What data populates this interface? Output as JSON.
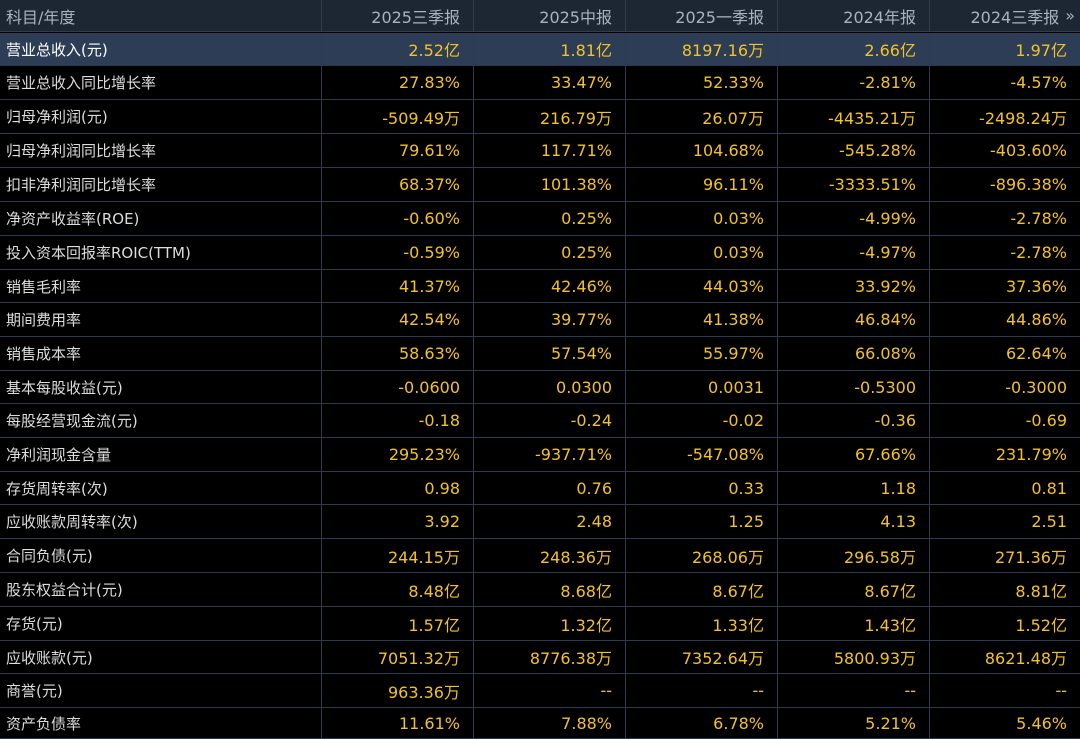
{
  "header": {
    "first": "科目/年度",
    "periods": [
      "2025三季报",
      "2025中报",
      "2025一季报",
      "2024年报",
      "2024三季报"
    ],
    "more_icon": "double-chevron-right-icon"
  },
  "rows": [
    {
      "label": "营业总收入(元)",
      "values": [
        "2.52亿",
        "1.81亿",
        "8197.16万",
        "2.66亿",
        "1.97亿"
      ]
    },
    {
      "label": "营业总收入同比增长率",
      "values": [
        "27.83%",
        "33.47%",
        "52.33%",
        "-2.81%",
        "-4.57%"
      ]
    },
    {
      "label": "归母净利润(元)",
      "values": [
        "-509.49万",
        "216.79万",
        "26.07万",
        "-4435.21万",
        "-2498.24万"
      ]
    },
    {
      "label": "归母净利润同比增长率",
      "values": [
        "79.61%",
        "117.71%",
        "104.68%",
        "-545.28%",
        "-403.60%"
      ]
    },
    {
      "label": "扣非净利润同比增长率",
      "values": [
        "68.37%",
        "101.38%",
        "96.11%",
        "-3333.51%",
        "-896.38%"
      ]
    },
    {
      "label": "净资产收益率(ROE)",
      "values": [
        "-0.60%",
        "0.25%",
        "0.03%",
        "-4.99%",
        "-2.78%"
      ]
    },
    {
      "label": "投入资本回报率ROIC(TTM)",
      "values": [
        "-0.59%",
        "0.25%",
        "0.03%",
        "-4.97%",
        "-2.78%"
      ]
    },
    {
      "label": "销售毛利率",
      "values": [
        "41.37%",
        "42.46%",
        "44.03%",
        "33.92%",
        "37.36%"
      ]
    },
    {
      "label": "期间费用率",
      "values": [
        "42.54%",
        "39.77%",
        "41.38%",
        "46.84%",
        "44.86%"
      ]
    },
    {
      "label": "销售成本率",
      "values": [
        "58.63%",
        "57.54%",
        "55.97%",
        "66.08%",
        "62.64%"
      ]
    },
    {
      "label": "基本每股收益(元)",
      "values": [
        "-0.0600",
        "0.0300",
        "0.0031",
        "-0.5300",
        "-0.3000"
      ]
    },
    {
      "label": "每股经营现金流(元)",
      "values": [
        "-0.18",
        "-0.24",
        "-0.02",
        "-0.36",
        "-0.69"
      ]
    },
    {
      "label": "净利润现金含量",
      "values": [
        "295.23%",
        "-937.71%",
        "-547.08%",
        "67.66%",
        "231.79%"
      ]
    },
    {
      "label": "存货周转率(次)",
      "values": [
        "0.98",
        "0.76",
        "0.33",
        "1.18",
        "0.81"
      ]
    },
    {
      "label": "应收账款周转率(次)",
      "values": [
        "3.92",
        "2.48",
        "1.25",
        "4.13",
        "2.51"
      ]
    },
    {
      "label": "合同负债(元)",
      "values": [
        "244.15万",
        "248.36万",
        "268.06万",
        "296.58万",
        "271.36万"
      ]
    },
    {
      "label": "股东权益合计(元)",
      "values": [
        "8.48亿",
        "8.68亿",
        "8.67亿",
        "8.67亿",
        "8.81亿"
      ]
    },
    {
      "label": "存货(元)",
      "values": [
        "1.57亿",
        "1.32亿",
        "1.33亿",
        "1.43亿",
        "1.52亿"
      ]
    },
    {
      "label": "应收账款(元)",
      "values": [
        "7051.32万",
        "8776.38万",
        "7352.64万",
        "5800.93万",
        "8621.48万"
      ]
    },
    {
      "label": "商誉(元)",
      "values": [
        "963.36万",
        "--",
        "--",
        "--",
        "--"
      ]
    },
    {
      "label": "资产负债率",
      "values": [
        "11.61%",
        "7.88%",
        "6.78%",
        "5.21%",
        "5.46%"
      ]
    }
  ],
  "selected_row": "营业总收入(元)",
  "colors": {
    "background": "#000000",
    "header_bg": "#1d2733",
    "selected_bg": "#2c3d55",
    "value": "#f3c22a",
    "label": "#dcdcdc",
    "grid": "#2a3a4f"
  }
}
